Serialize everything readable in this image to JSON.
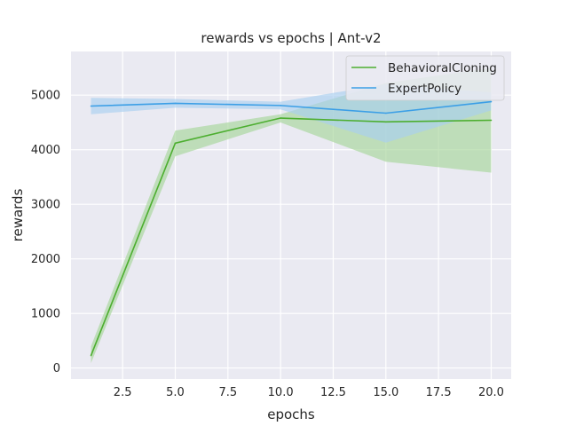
{
  "chart_data": {
    "type": "line",
    "title": "rewards vs epochs | Ant-v2",
    "xlabel": "epochs",
    "ylabel": "rewards",
    "xlim": [
      0.05,
      20.95
    ],
    "ylim": [
      -200,
      5800
    ],
    "xticks": [
      2.5,
      5.0,
      7.5,
      10.0,
      12.5,
      15.0,
      17.5,
      20.0
    ],
    "xtick_labels": [
      "2.5",
      "5.0",
      "7.5",
      "10.0",
      "12.5",
      "15.0",
      "17.5",
      "20.0"
    ],
    "yticks": [
      0,
      1000,
      2000,
      3000,
      4000,
      5000
    ],
    "ytick_labels": [
      "0",
      "1000",
      "2000",
      "3000",
      "4000",
      "5000"
    ],
    "grid": true,
    "legend_position": "top-right",
    "x": [
      1,
      5,
      10,
      15,
      20
    ],
    "series": [
      {
        "name": "BehavioralCloning",
        "color": "#4cae2f",
        "band_color": "#a6d59a",
        "values": [
          230,
          4120,
          4580,
          4510,
          4540
        ],
        "lower": [
          90,
          3880,
          4500,
          3780,
          3580
        ],
        "upper": [
          400,
          4350,
          4650,
          5220,
          5500
        ]
      },
      {
        "name": "ExpertPolicy",
        "color": "#3c9fe6",
        "band_color": "#a9d0f0",
        "values": [
          4800,
          4850,
          4810,
          4670,
          4880
        ],
        "lower": [
          4650,
          4770,
          4740,
          4130,
          4720
        ],
        "upper": [
          4950,
          4930,
          4880,
          5200,
          5050
        ]
      }
    ]
  }
}
